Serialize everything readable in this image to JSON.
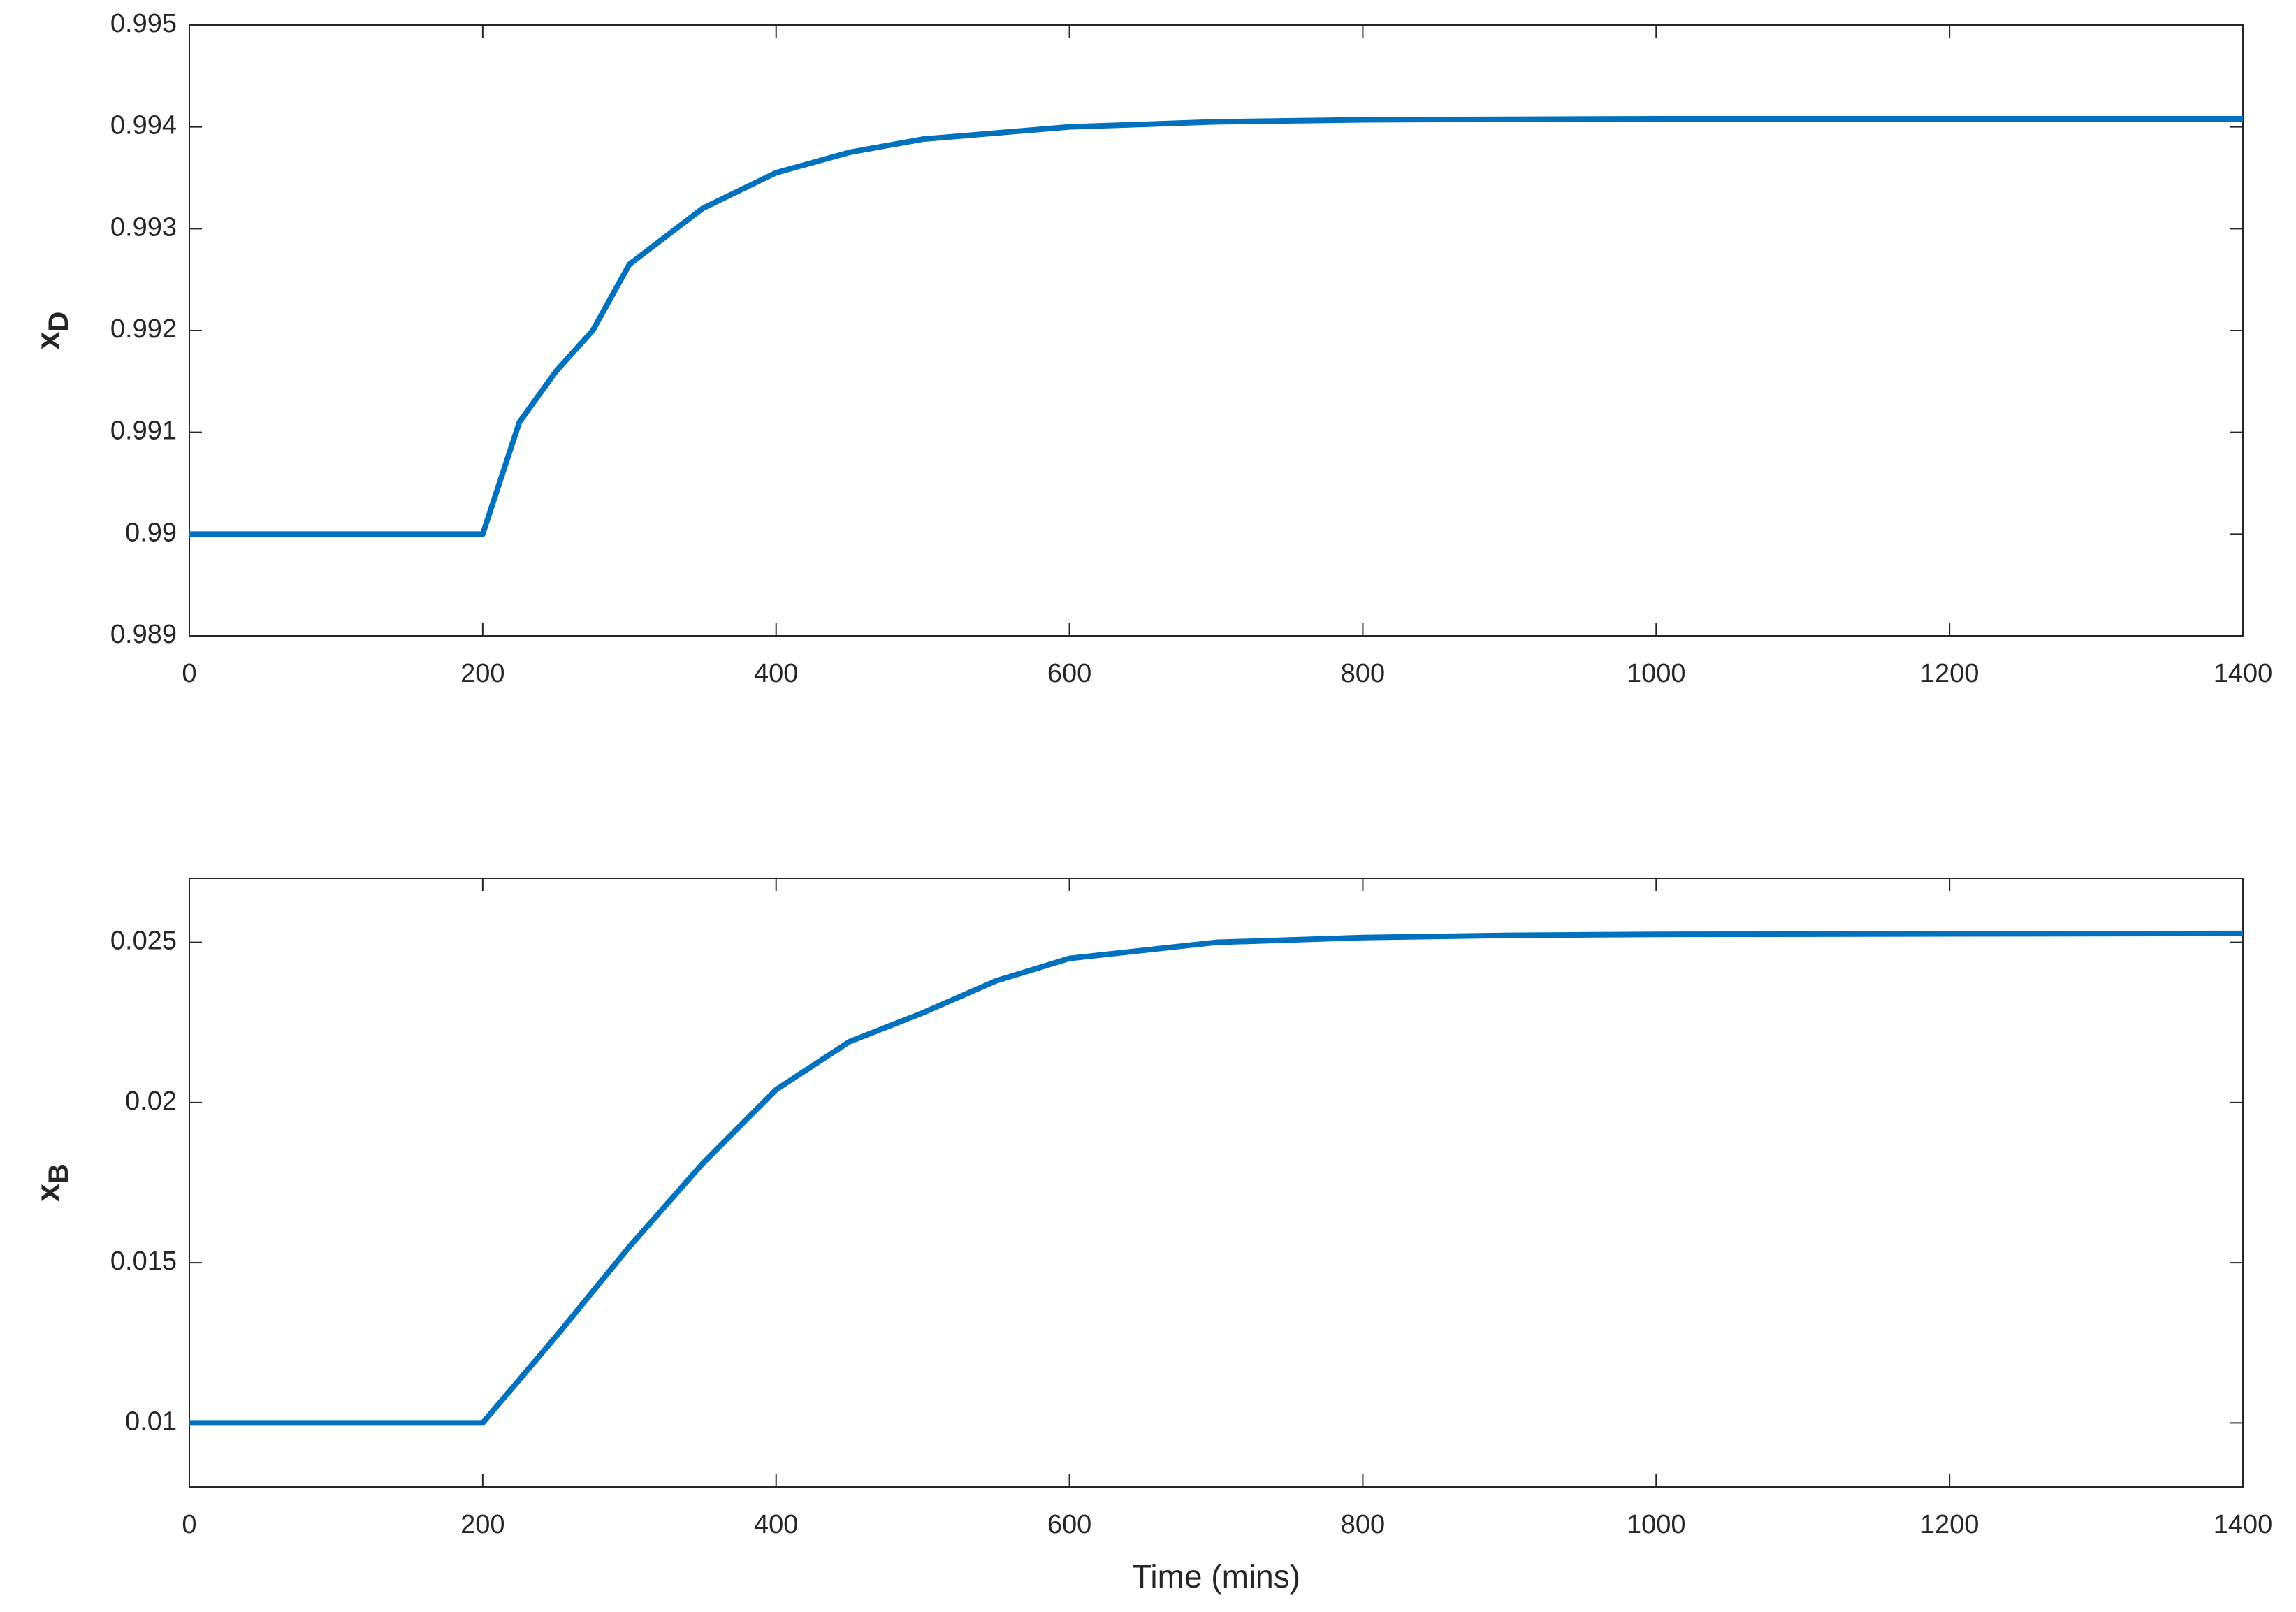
{
  "chart_data": [
    {
      "type": "line",
      "ylabel": {
        "base": "x",
        "sub": "D"
      },
      "x": [
        0,
        200,
        225,
        250,
        275,
        300,
        350,
        400,
        450,
        500,
        600,
        700,
        800,
        1000,
        1400
      ],
      "series": [
        {
          "color": "#0072bd",
          "values": [
            0.99,
            0.99,
            0.9911,
            0.9916,
            0.992,
            0.99265,
            0.9932,
            0.99355,
            0.99375,
            0.99388,
            0.994,
            0.99405,
            0.99407,
            0.99408,
            0.99408
          ]
        }
      ],
      "xlim": [
        0,
        1400
      ],
      "xticks": [
        0,
        200,
        400,
        600,
        800,
        1000,
        1200,
        1400
      ],
      "ylim": [
        0.989,
        0.995
      ],
      "yticks": [
        0.989,
        0.99,
        0.991,
        0.992,
        0.993,
        0.994,
        0.995
      ]
    },
    {
      "type": "line",
      "ylabel": {
        "base": "x",
        "sub": "B"
      },
      "xlabel": "Time (mins)",
      "x": [
        0,
        200,
        250,
        300,
        350,
        400,
        450,
        500,
        550,
        600,
        700,
        800,
        900,
        1000,
        1400
      ],
      "series": [
        {
          "color": "#0072bd",
          "values": [
            0.01,
            0.01,
            0.0127,
            0.0155,
            0.0181,
            0.0204,
            0.0219,
            0.0228,
            0.0238,
            0.0245,
            0.025,
            0.02515,
            0.02522,
            0.02525,
            0.02528
          ]
        }
      ],
      "xlim": [
        0,
        1400
      ],
      "xticks": [
        0,
        200,
        400,
        600,
        800,
        1000,
        1200,
        1400
      ],
      "ylim": [
        0.008,
        0.027
      ],
      "yticks": [
        0.01,
        0.015,
        0.02,
        0.025
      ]
    }
  ]
}
